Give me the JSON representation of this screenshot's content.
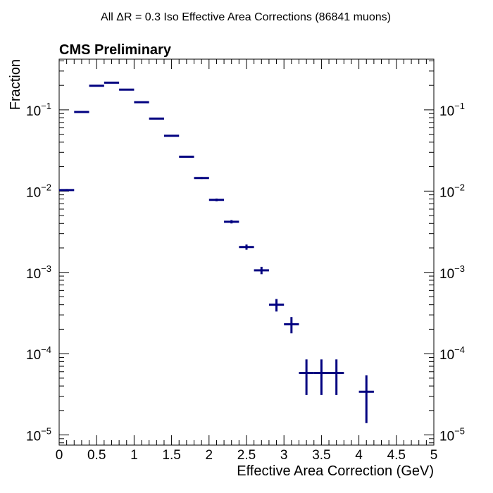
{
  "chart_data": {
    "type": "scatter",
    "title": "All ΔR = 0.3 Iso Effective Area Corrections (86841 muons)",
    "annotation": "CMS Preliminary",
    "xlabel": "Effective Area Correction (GeV)",
    "ylabel": "Fraction",
    "xlim": [
      0,
      5
    ],
    "ylim": [
      7.5e-06,
      0.42
    ],
    "yscale": "log",
    "grid": false,
    "marker_color": "#000080",
    "x_ticks": [
      {
        "value": 0,
        "label": "0"
      },
      {
        "value": 0.5,
        "label": "0.5"
      },
      {
        "value": 1,
        "label": "1"
      },
      {
        "value": 1.5,
        "label": "1.5"
      },
      {
        "value": 2,
        "label": "2"
      },
      {
        "value": 2.5,
        "label": "2.5"
      },
      {
        "value": 3,
        "label": "3"
      },
      {
        "value": 3.5,
        "label": "3.5"
      },
      {
        "value": 4,
        "label": "4"
      },
      {
        "value": 4.5,
        "label": "4.5"
      },
      {
        "value": 5,
        "label": "5"
      }
    ],
    "y_ticks": [
      {
        "value": 0.1,
        "base": "10",
        "exponent": "−1"
      },
      {
        "value": 0.01,
        "base": "10",
        "exponent": "−2"
      },
      {
        "value": 0.001,
        "base": "10",
        "exponent": "−3"
      },
      {
        "value": 0.0001,
        "base": "10",
        "exponent": "−4"
      },
      {
        "value": 1e-05,
        "base": "10",
        "exponent": "−5"
      }
    ],
    "series": [
      {
        "x": [
          0.1,
          0.3,
          0.5,
          0.7,
          0.9,
          1.1,
          1.3,
          1.5,
          1.7,
          1.9,
          2.1,
          2.3,
          2.5,
          2.7,
          2.9,
          3.1,
          3.3,
          3.5,
          3.7,
          4.1
        ],
        "x_halfwidth": [
          0.1,
          0.1,
          0.1,
          0.1,
          0.1,
          0.1,
          0.1,
          0.1,
          0.1,
          0.1,
          0.1,
          0.1,
          0.1,
          0.1,
          0.1,
          0.1,
          0.1,
          0.1,
          0.1,
          0.1
        ],
        "y": [
          0.0103,
          0.094,
          0.198,
          0.216,
          0.177,
          0.124,
          0.078,
          0.048,
          0.0265,
          0.0145,
          0.0078,
          0.0042,
          0.00205,
          0.00106,
          0.0004,
          0.00023,
          5.8e-05,
          5.8e-05,
          5.8e-05,
          3.4e-05
        ],
        "y_err": [
          0.0003,
          0.001,
          0.0015,
          0.0016,
          0.0014,
          0.0012,
          0.0009,
          0.0007,
          0.0005,
          0.0004,
          0.0003,
          0.0002,
          0.00015,
          0.00011,
          7e-05,
          5.2e-05,
          2.7e-05,
          2.7e-05,
          2.7e-05,
          2e-05
        ]
      }
    ]
  }
}
